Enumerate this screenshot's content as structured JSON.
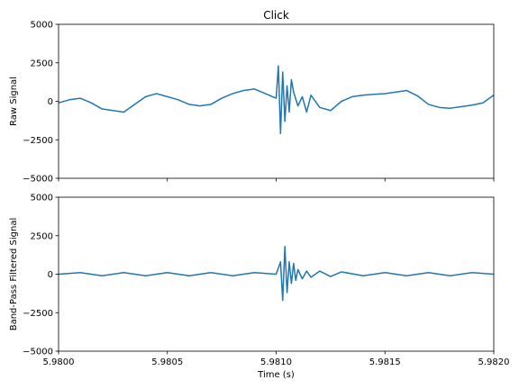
{
  "chart_data": [
    {
      "type": "line",
      "title": "Click",
      "xlabel": "",
      "ylabel": "Raw Signal",
      "xlim": [
        5.98,
        5.982
      ],
      "ylim": [
        -5000,
        5000
      ],
      "x_ticks": [
        5.98,
        5.9805,
        5.981,
        5.9815,
        5.982
      ],
      "x_tick_labels_shown": false,
      "y_ticks": [
        "5000",
        "2500",
        "0",
        "−2500",
        "−5000"
      ],
      "y_tick_values": [
        5000,
        2500,
        0,
        -2500,
        -5000
      ],
      "grid": false,
      "color": "#1f77b4",
      "series": [
        {
          "x": [
            5.98,
            5.98005,
            5.9801,
            5.98015,
            5.9802,
            5.98025,
            5.9803,
            5.98035,
            5.9804,
            5.98045,
            5.9805,
            5.98055,
            5.9806,
            5.98065,
            5.9807,
            5.98075,
            5.9808,
            5.98085,
            5.9809,
            5.98095,
            5.981,
            5.98101,
            5.98102,
            5.98103,
            5.98104,
            5.98105,
            5.98106,
            5.98107,
            5.98108,
            5.9811,
            5.98112,
            5.98114,
            5.98116,
            5.9812,
            5.98125,
            5.9813,
            5.98135,
            5.9814,
            5.98145,
            5.9815,
            5.98155,
            5.9816,
            5.98165,
            5.9817,
            5.98175,
            5.9818,
            5.98185,
            5.9819,
            5.98195,
            5.982
          ],
          "y": [
            -100,
            100,
            200,
            -100,
            -500,
            -600,
            -700,
            -200,
            300,
            500,
            300,
            100,
            -200,
            -300,
            -200,
            200,
            500,
            700,
            800,
            500,
            200,
            2300,
            -2100,
            1900,
            -1300,
            1000,
            -700,
            1400,
            600,
            -300,
            300,
            -700,
            400,
            -400,
            -600,
            0,
            300,
            400,
            450,
            500,
            600,
            700,
            350,
            -200,
            -400,
            -450,
            -350,
            -250,
            -100,
            400
          ]
        }
      ]
    },
    {
      "type": "line",
      "xlabel": "Time (s)",
      "ylabel": "Band-Pass Filtered Signal",
      "xlim": [
        5.98,
        5.982
      ],
      "ylim": [
        -5000,
        5000
      ],
      "x_ticks": [
        5.98,
        5.9805,
        5.981,
        5.9815,
        5.982
      ],
      "x_tick_labels": [
        "5.9800",
        "5.9805",
        "5.9810",
        "5.9815",
        "5.9820"
      ],
      "y_ticks": [
        "5000",
        "2500",
        "0",
        "−2500",
        "−5000"
      ],
      "y_tick_values": [
        5000,
        2500,
        0,
        -2500,
        -5000
      ],
      "grid": false,
      "color": "#1f77b4",
      "series": [
        {
          "x": [
            5.98,
            5.9801,
            5.9802,
            5.9803,
            5.9804,
            5.9805,
            5.9806,
            5.9807,
            5.9808,
            5.9809,
            5.981,
            5.98102,
            5.98103,
            5.98104,
            5.98105,
            5.98106,
            5.98107,
            5.98108,
            5.98109,
            5.9811,
            5.98112,
            5.98114,
            5.98116,
            5.9812,
            5.98125,
            5.9813,
            5.9814,
            5.9815,
            5.9816,
            5.9817,
            5.9818,
            5.9819,
            5.982
          ],
          "y": [
            0,
            100,
            -100,
            100,
            -100,
            100,
            -100,
            100,
            -100,
            100,
            0,
            800,
            -1700,
            1800,
            -1200,
            800,
            -600,
            700,
            -400,
            300,
            -300,
            200,
            -200,
            200,
            -150,
            150,
            -100,
            100,
            -100,
            100,
            -100,
            100,
            0
          ]
        }
      ]
    }
  ]
}
